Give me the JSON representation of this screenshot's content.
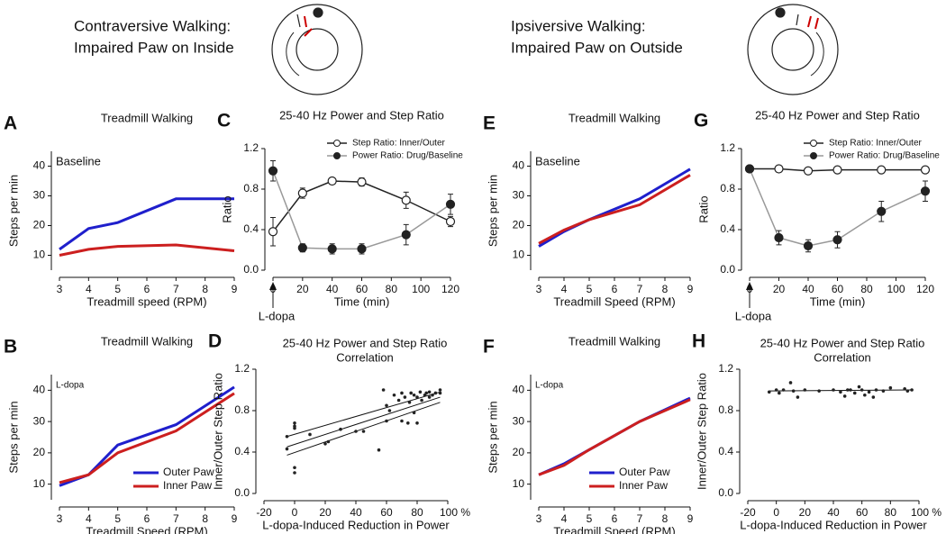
{
  "headers": [
    "Contraversive Walking:",
    "Impaired Paw on Inside",
    "Ipsiversive Walking:",
    "Impaired Paw on Outside"
  ],
  "chart_data": [
    {
      "type": "line",
      "panel": "A",
      "title": "Treadmill Walking",
      "annotation": "Baseline",
      "annotation_position": "top-left",
      "xlabel": "Treadmill speed (RPM)",
      "ylabel": "Steps per min",
      "x": [
        3,
        4,
        5,
        7,
        9
      ],
      "xlim": [
        3,
        9
      ],
      "xticks": [
        3,
        4,
        5,
        6,
        7,
        8,
        9
      ],
      "ylim": [
        5,
        45
      ],
      "yticks": [
        10,
        20,
        30,
        40
      ],
      "series": [
        {
          "color": "#1f1fcc",
          "values": [
            12,
            19,
            21,
            29,
            29
          ]
        },
        {
          "color": "#cc1f1f",
          "values": [
            10,
            12,
            13,
            13.5,
            11.5
          ]
        }
      ]
    },
    {
      "type": "line",
      "panel": "B",
      "title": "Treadmill Walking",
      "annotation": "L-dopa",
      "annotation_position": "top-left",
      "xlabel": "Treadmill Speed (RPM)",
      "ylabel": "Steps per min",
      "legend": "lower right",
      "x": [
        3,
        4,
        5,
        7,
        9
      ],
      "xlim": [
        3,
        9
      ],
      "xticks": [
        3,
        4,
        5,
        6,
        7,
        8,
        9
      ],
      "ylim": [
        5,
        45
      ],
      "yticks": [
        10,
        20,
        30,
        40
      ],
      "series": [
        {
          "name": "Outer Paw",
          "color": "#1f1fcc",
          "values": [
            9.5,
            13,
            22.5,
            29,
            41
          ]
        },
        {
          "name": "Inner Paw",
          "color": "#cc1f1f",
          "values": [
            10.5,
            13,
            20,
            27,
            39
          ]
        }
      ]
    },
    {
      "type": "line",
      "panel": "C",
      "title": "25-40 Hz Power and Step Ratio",
      "annotation": "L-dopa",
      "annotation_position": "below-origin",
      "xlabel": "Time (min)",
      "ylabel": "Ratio",
      "legend": "upper right",
      "x": [
        0,
        20,
        40,
        60,
        90,
        120
      ],
      "xlim": [
        0,
        120
      ],
      "xticks": [
        0,
        20,
        40,
        60,
        80,
        100,
        120
      ],
      "ylim": [
        0,
        1.2
      ],
      "yticks": [
        {
          "value": 0,
          "label": "0.0"
        },
        0.4,
        0.8,
        1.2
      ],
      "series": [
        {
          "name": "Step Ratio: Inner/Outer",
          "color": "#222222",
          "marker_fill": "#ffffff",
          "values": [
            0.38,
            0.76,
            0.88,
            0.87,
            0.69,
            0.48
          ],
          "errors": [
            0.14,
            0.05,
            0.02,
            0.04,
            0.08,
            0.05
          ]
        },
        {
          "name": "Power Ratio: Drug/Baseline",
          "color": "#999999",
          "marker_fill": "#222222",
          "values": [
            0.98,
            0.22,
            0.21,
            0.21,
            0.35,
            0.65
          ],
          "errors": [
            0.1,
            0.04,
            0.05,
            0.05,
            0.1,
            0.1
          ]
        }
      ]
    },
    {
      "type": "scatter",
      "panel": "D",
      "title": "25-40 Hz Power and Step Ratio",
      "subtitle": "Correlation",
      "xlabel": "L-dopa-Induced Reduction in Power",
      "ylabel": "Inner/Outer Step Ratio",
      "color": "#222222",
      "xlim": [
        -20,
        100
      ],
      "xticks": [
        -20,
        0,
        20,
        40,
        60,
        80,
        {
          "value": 100,
          "label": "100 %"
        }
      ],
      "ylim": [
        0,
        1.2
      ],
      "yticks": [
        {
          "value": 0,
          "label": "0.0"
        },
        0.4,
        0.8,
        1.2
      ],
      "x": [
        -5,
        -5,
        0,
        0,
        0,
        0,
        0,
        10,
        20,
        22,
        30,
        40,
        45,
        55,
        58,
        60,
        60,
        62,
        65,
        68,
        70,
        70,
        72,
        74,
        75,
        76,
        78,
        78,
        80,
        80,
        82,
        83,
        85,
        86,
        88,
        88,
        90,
        92,
        95,
        95
      ],
      "values": [
        0.55,
        0.43,
        0.68,
        0.65,
        0.63,
        0.25,
        0.2,
        0.57,
        0.48,
        0.5,
        0.62,
        0.6,
        0.6,
        0.42,
        1.0,
        0.85,
        0.7,
        0.8,
        0.95,
        0.9,
        0.97,
        0.7,
        0.93,
        0.68,
        0.88,
        0.97,
        0.78,
        0.95,
        0.93,
        0.68,
        0.98,
        0.9,
        0.95,
        0.97,
        0.93,
        0.98,
        0.95,
        0.97,
        1.0,
        0.97
      ],
      "fits": [
        {
          "x": [
            -5,
            95
          ],
          "y": [
            0.45,
            0.93
          ]
        },
        {
          "x": [
            -5,
            95
          ],
          "y": [
            0.37,
            0.88
          ]
        },
        {
          "x": [
            -5,
            95
          ],
          "y": [
            0.55,
            0.98
          ]
        }
      ]
    },
    {
      "type": "line",
      "panel": "E",
      "title": "Treadmill Walking",
      "annotation": "Baseline",
      "annotation_position": "top-left",
      "xlabel": "Treadmill Speed (RPM)",
      "ylabel": "Steps per min",
      "x": [
        3,
        4,
        5,
        7,
        9
      ],
      "xlim": [
        3,
        9
      ],
      "xticks": [
        3,
        4,
        5,
        6,
        7,
        8,
        9
      ],
      "ylim": [
        5,
        45
      ],
      "yticks": [
        10,
        20,
        30,
        40
      ],
      "series": [
        {
          "color": "#1f1fcc",
          "values": [
            13,
            18,
            22,
            29,
            39
          ]
        },
        {
          "color": "#cc1f1f",
          "values": [
            14,
            18.5,
            22,
            27,
            37
          ]
        }
      ]
    },
    {
      "type": "line",
      "panel": "F",
      "title": "Treadmill Walking",
      "annotation": "L-dopa",
      "annotation_position": "top-left",
      "xlabel": "Treadmill Speed (RPM)",
      "ylabel": "Steps per min",
      "legend": "lower right",
      "x": [
        3,
        4,
        5,
        7,
        9
      ],
      "xlim": [
        3,
        9
      ],
      "xticks": [
        3,
        4,
        5,
        6,
        7,
        8,
        9
      ],
      "ylim": [
        5,
        45
      ],
      "yticks": [
        10,
        20,
        30,
        40
      ],
      "series": [
        {
          "name": "Outer Paw",
          "color": "#1f1fcc",
          "values": [
            13,
            16.5,
            21,
            30,
            37.5
          ]
        },
        {
          "name": "Inner Paw",
          "color": "#cc1f1f",
          "values": [
            13,
            16,
            21,
            30,
            37
          ]
        }
      ]
    },
    {
      "type": "line",
      "panel": "G",
      "title": "25-40 Hz Power and Step Ratio",
      "annotation": "L-dopa",
      "annotation_position": "below-origin",
      "xlabel": "Time (min)",
      "ylabel": "Ratio",
      "legend": "upper right",
      "x": [
        0,
        20,
        40,
        60,
        90,
        120
      ],
      "xlim": [
        0,
        120
      ],
      "xticks": [
        0,
        20,
        40,
        60,
        80,
        100,
        120
      ],
      "ylim": [
        0,
        1.2
      ],
      "yticks": [
        {
          "value": 0,
          "label": "0.0"
        },
        0.4,
        0.8,
        1.2
      ],
      "series": [
        {
          "name": "Step Ratio: Inner/Outer",
          "color": "#222222",
          "marker_fill": "#ffffff",
          "values": [
            1.0,
            1.0,
            0.98,
            0.99,
            0.99,
            0.99
          ],
          "errors": [
            0.02,
            0.02,
            0.02,
            0.02,
            0.02,
            0.02
          ]
        },
        {
          "name": "Power Ratio: Drug/Baseline",
          "color": "#999999",
          "marker_fill": "#222222",
          "values": [
            1.0,
            0.32,
            0.24,
            0.3,
            0.58,
            0.78
          ],
          "errors": [
            0.02,
            0.07,
            0.06,
            0.08,
            0.1,
            0.1
          ]
        }
      ]
    },
    {
      "type": "scatter",
      "panel": "H",
      "title": "25-40 Hz Power and Step Ratio",
      "subtitle": "Correlation",
      "xlabel": "L-dopa-Induced Reduction in Power",
      "ylabel": "Inner/Outer Step Ratio",
      "color": "#222222",
      "xlim": [
        -20,
        100
      ],
      "xticks": [
        -20,
        0,
        20,
        40,
        60,
        80,
        {
          "value": 100,
          "label": "100 %"
        }
      ],
      "ylim": [
        0,
        1.2
      ],
      "yticks": [
        {
          "value": 0,
          "label": "0.0"
        },
        0.4,
        0.8,
        1.2
      ],
      "x": [
        -5,
        0,
        2,
        5,
        10,
        12,
        15,
        20,
        30,
        40,
        45,
        48,
        50,
        52,
        55,
        58,
        60,
        62,
        65,
        68,
        70,
        75,
        80,
        90,
        92,
        95
      ],
      "values": [
        0.98,
        1.0,
        0.97,
        1.0,
        1.07,
        0.99,
        0.93,
        1.0,
        0.99,
        1.0,
        0.98,
        0.94,
        1.0,
        1.0,
        0.97,
        1.03,
        1.0,
        0.95,
        0.98,
        0.93,
        1.0,
        0.99,
        1.02,
        1.01,
        0.99,
        1.0
      ],
      "fits": [
        {
          "x": [
            -5,
            95
          ],
          "y": [
            0.99,
            1.0
          ]
        }
      ]
    }
  ]
}
